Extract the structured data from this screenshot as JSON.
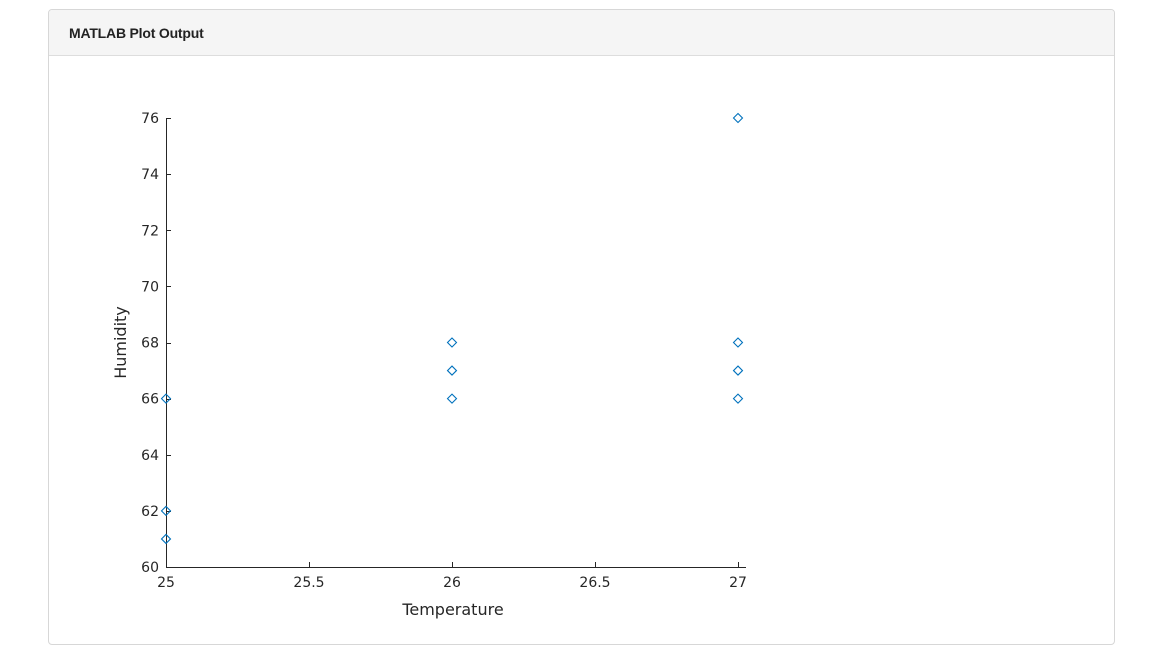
{
  "panel": {
    "title": "MATLAB Plot Output"
  },
  "colors": {
    "marker": "#0072BD",
    "axis": "#262626"
  },
  "chart_data": {
    "type": "scatter",
    "marker": "diamond",
    "xlabel": "Temperature",
    "ylabel": "Humidity",
    "xlim": [
      25,
      27
    ],
    "ylim": [
      60,
      76
    ],
    "xticks": [
      25,
      25.5,
      26,
      26.5,
      27
    ],
    "yticks": [
      60,
      62,
      64,
      66,
      68,
      70,
      72,
      74,
      76
    ],
    "points": [
      {
        "x": 25,
        "y": 66
      },
      {
        "x": 25,
        "y": 62
      },
      {
        "x": 25,
        "y": 61
      },
      {
        "x": 26,
        "y": 68
      },
      {
        "x": 26,
        "y": 67
      },
      {
        "x": 26,
        "y": 66
      },
      {
        "x": 27,
        "y": 76
      },
      {
        "x": 27,
        "y": 68
      },
      {
        "x": 27,
        "y": 67
      },
      {
        "x": 27,
        "y": 66
      }
    ]
  }
}
